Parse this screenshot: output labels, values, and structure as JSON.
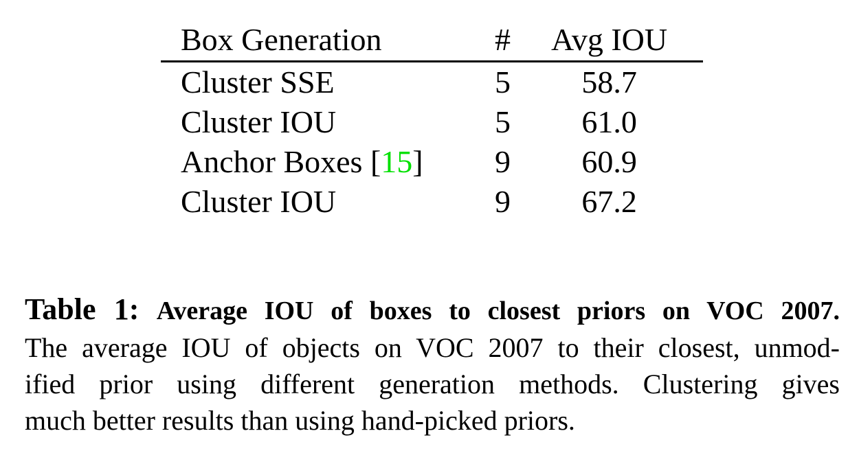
{
  "table": {
    "headers": [
      "Box Generation",
      "#",
      "Avg IOU"
    ],
    "rows": [
      {
        "method": "Cluster SSE",
        "num": "5",
        "avg_iou": "58.7"
      },
      {
        "method": "Cluster IOU",
        "num": "5",
        "avg_iou": "61.0"
      },
      {
        "method": "Anchor Boxes",
        "citation_open": "[",
        "citation": "15",
        "citation_close": "]",
        "num": "9",
        "avg_iou": "60.9"
      },
      {
        "method": "Cluster IOU",
        "num": "9",
        "avg_iou": "67.2"
      }
    ]
  },
  "caption": {
    "label": "Table 1:",
    "title": "Average IOU of boxes to closest priors on VOC 2007.",
    "lines": [
      "The average IOU of objects on VOC 2007 to their closest, unmod-",
      "ified prior using different generation methods.  Clustering gives",
      "much better results than using hand-picked priors."
    ]
  },
  "colors": {
    "citation_link": "#00e000",
    "text": "#000000",
    "background": "#ffffff"
  }
}
